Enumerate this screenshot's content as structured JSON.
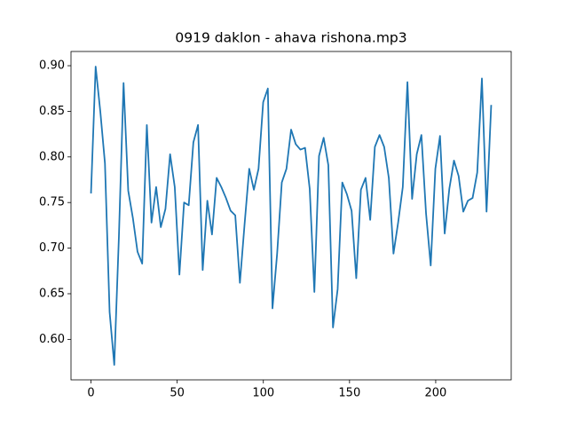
{
  "chart_data": {
    "type": "line",
    "title": "0919 daklon - ahava rishona.mp3",
    "x": [
      0,
      2.7,
      5.4,
      8.1,
      10.8,
      13.5,
      16.2,
      18.9,
      21.6,
      24.3,
      27,
      29.7,
      32.4,
      35.1,
      37.8,
      40.5,
      43.2,
      45.9,
      48.6,
      51.3,
      54,
      56.7,
      59.4,
      62.1,
      64.8,
      67.5,
      70.2,
      72.9,
      75.6,
      78.3,
      81,
      83.7,
      86.4,
      89.1,
      91.8,
      94.5,
      97.2,
      99.9,
      102.6,
      105.3,
      108,
      110.7,
      113.4,
      116.1,
      118.8,
      121.5,
      124.2,
      126.9,
      129.6,
      132.3,
      135,
      137.7,
      140.4,
      143.1,
      145.8,
      148.5,
      151.2,
      153.9,
      156.6,
      159.3,
      162,
      164.7,
      167.4,
      170.1,
      172.8,
      175.5,
      178.2,
      180.9,
      183.6,
      186.3,
      189,
      191.7,
      194.4,
      197.1,
      199.8,
      202.5,
      205.2,
      207.9,
      210.6,
      213.3,
      216,
      218.7,
      221.4,
      224.1,
      226.8,
      229.5,
      232.2
    ],
    "values": [
      0.76,
      0.899,
      0.85,
      0.793,
      0.63,
      0.572,
      0.713,
      0.881,
      0.763,
      0.733,
      0.696,
      0.683,
      0.835,
      0.728,
      0.767,
      0.723,
      0.743,
      0.803,
      0.767,
      0.671,
      0.75,
      0.747,
      0.816,
      0.835,
      0.676,
      0.752,
      0.715,
      0.777,
      0.767,
      0.755,
      0.741,
      0.736,
      0.662,
      0.726,
      0.787,
      0.764,
      0.787,
      0.86,
      0.875,
      0.634,
      0.694,
      0.772,
      0.787,
      0.83,
      0.814,
      0.808,
      0.81,
      0.765,
      0.652,
      0.801,
      0.821,
      0.791,
      0.613,
      0.655,
      0.772,
      0.759,
      0.741,
      0.667,
      0.764,
      0.777,
      0.731,
      0.811,
      0.824,
      0.811,
      0.777,
      0.694,
      0.728,
      0.767,
      0.882,
      0.754,
      0.803,
      0.824,
      0.738,
      0.681,
      0.787,
      0.823,
      0.716,
      0.765,
      0.796,
      0.779,
      0.74,
      0.752,
      0.755,
      0.783,
      0.886,
      0.74,
      0.857
    ],
    "color": "#1f77b4",
    "xlim": [
      -11.6,
      243.8
    ],
    "xticks": [
      0,
      50,
      100,
      150,
      200
    ],
    "ylim": [
      0.5556,
      0.9156
    ],
    "yticks": [
      {
        "value": 0.6,
        "label": "0.60"
      },
      {
        "value": 0.65,
        "label": "0.65"
      },
      {
        "value": 0.7,
        "label": "0.70"
      },
      {
        "value": 0.75,
        "label": "0.75"
      },
      {
        "value": 0.8,
        "label": "0.80"
      },
      {
        "value": 0.85,
        "label": "0.85"
      },
      {
        "value": 0.9,
        "label": "0.90"
      }
    ]
  }
}
